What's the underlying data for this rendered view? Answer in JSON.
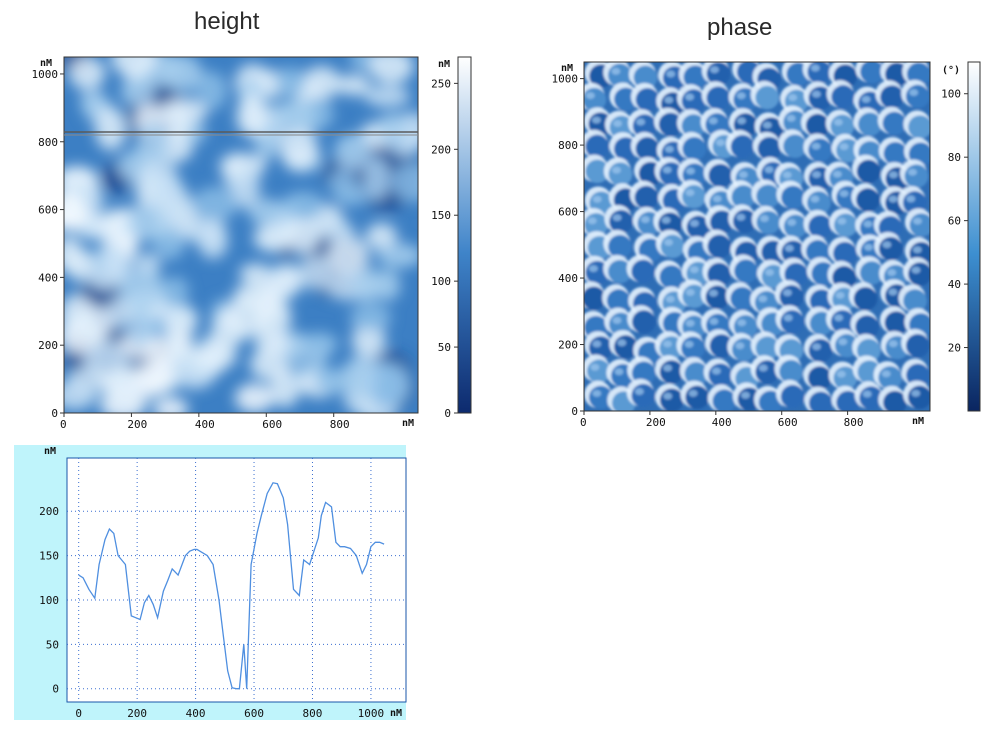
{
  "panels": {
    "height": {
      "title": "height",
      "axis_unit": "nM",
      "x_ticks": [
        "0",
        "200",
        "400",
        "600",
        "800"
      ],
      "y_ticks": [
        "0",
        "200",
        "400",
        "600",
        "800",
        "1000"
      ],
      "colorbar_unit": "nM",
      "colorbar_ticks": [
        "0",
        "50",
        "100",
        "150",
        "200",
        "250"
      ],
      "colorbar_range": [
        0,
        270
      ],
      "colors": {
        "dark": "#0d2a6e",
        "mid": "#3f84c9",
        "light": "#eaf5ff"
      }
    },
    "phase": {
      "title": "phase",
      "axis_unit": "nM",
      "x_ticks": [
        "0",
        "200",
        "400",
        "600",
        "800"
      ],
      "y_ticks": [
        "0",
        "200",
        "400",
        "600",
        "800",
        "1000"
      ],
      "colorbar_unit": "(°)",
      "colorbar_ticks": [
        "20",
        "40",
        "60",
        "80",
        "100"
      ],
      "colorbar_range": [
        0,
        110
      ],
      "colors": {
        "dark": "#1a4f9a",
        "mid": "#3d8fd0",
        "light": "#eef7ff"
      }
    }
  },
  "chart_data": [
    {
      "type": "heatmap",
      "title": "height",
      "xlim": [
        0,
        1050
      ],
      "ylim": [
        0,
        1050
      ],
      "colorbar_range": [
        0,
        270
      ],
      "profile_line_y": 830
    },
    {
      "type": "heatmap",
      "title": "phase",
      "xlim": [
        0,
        1050
      ],
      "ylim": [
        0,
        1050
      ],
      "colorbar_range": [
        0,
        110
      ]
    },
    {
      "type": "line",
      "ylabel": "nM",
      "xlabel": "nM",
      "xlim": [
        -40,
        1120
      ],
      "ylim": [
        -15,
        260
      ],
      "x_ticks": [
        0,
        200,
        400,
        600,
        800,
        1000
      ],
      "y_ticks": [
        0,
        50,
        100,
        150,
        200
      ],
      "grid": true,
      "background": "#bff4fb",
      "line_color": "#4f8fe0",
      "x": [
        0,
        15,
        35,
        55,
        70,
        90,
        105,
        120,
        135,
        160,
        180,
        195,
        210,
        225,
        240,
        255,
        270,
        290,
        305,
        320,
        340,
        365,
        380,
        395,
        405,
        420,
        440,
        460,
        480,
        495,
        510,
        525,
        540,
        550,
        565,
        575,
        590,
        610,
        625,
        645,
        665,
        680,
        700,
        715,
        735,
        755,
        770,
        790,
        810,
        820,
        830,
        845,
        865,
        880,
        895,
        910,
        930,
        950,
        970,
        985,
        1000,
        1015,
        1030,
        1045
      ],
      "y": [
        128,
        125,
        112,
        102,
        140,
        168,
        180,
        175,
        150,
        140,
        82,
        80,
        78,
        97,
        105,
        95,
        80,
        110,
        122,
        135,
        128,
        150,
        155,
        157,
        157,
        154,
        150,
        140,
        100,
        60,
        20,
        1,
        0,
        0,
        50,
        0,
        140,
        175,
        195,
        220,
        232,
        231,
        215,
        185,
        112,
        105,
        145,
        140,
        160,
        170,
        195,
        210,
        205,
        165,
        160,
        160,
        158,
        150,
        130,
        140,
        160,
        165,
        165,
        163
      ]
    }
  ]
}
